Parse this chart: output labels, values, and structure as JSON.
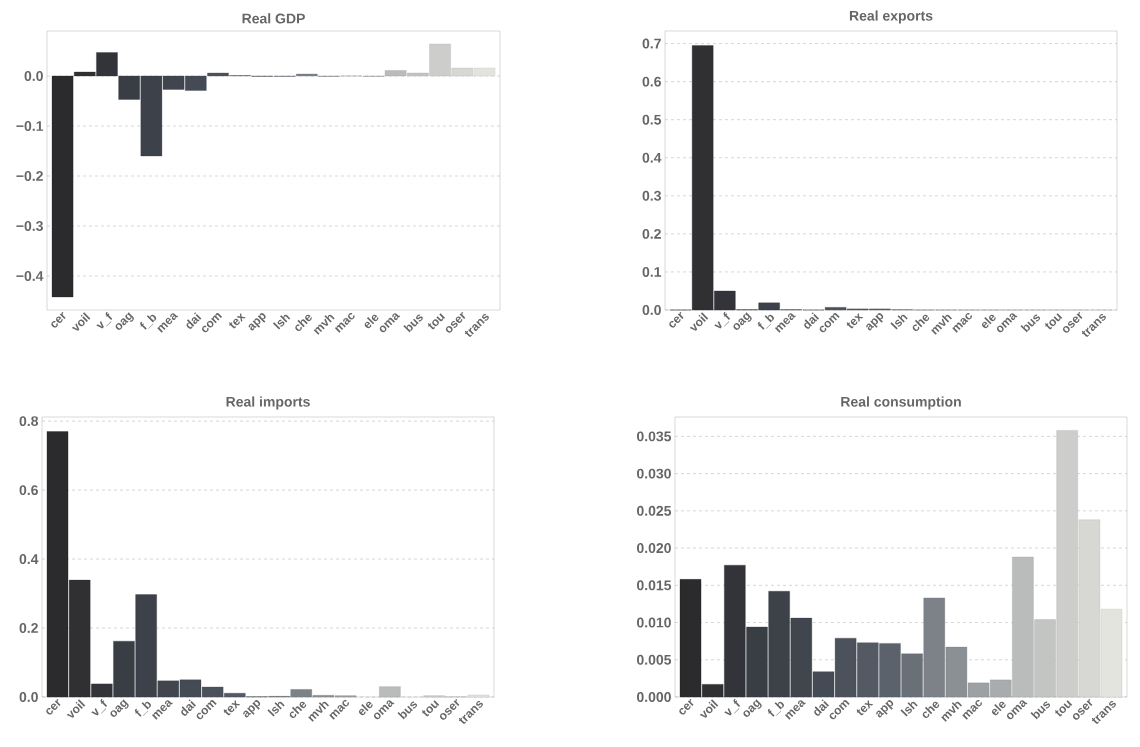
{
  "chart_data": [
    {
      "type": "bar",
      "title": "Real GDP",
      "categories": [
        "cer",
        "voil",
        "v_f",
        "oag",
        "f_b",
        "mea",
        "dai",
        "com",
        "tex",
        "app",
        "lsh",
        "che",
        "mvh",
        "mac",
        "ele",
        "oma",
        "bus",
        "tou",
        "oser",
        "trans"
      ],
      "values": [
        -0.442,
        0.008,
        0.047,
        -0.047,
        -0.16,
        -0.027,
        -0.029,
        0.006,
        0.001,
        -0.001,
        -0.001,
        0.004,
        -0.001,
        0,
        -0.001,
        0.011,
        0.006,
        0.064,
        0.016,
        0.016
      ],
      "colors": [
        "#2b2a2c",
        "#303033",
        "#323439",
        "#393d44",
        "#3c414a",
        "#40454e",
        "#454b55",
        "#4c525c",
        "#535a64",
        "#5b626b",
        "#6a7078",
        "#7d8289",
        "#8b9095",
        "#9da1a4",
        "#a9acae",
        "#b9bcba",
        "#c3c5c2",
        "#cdcecb",
        "#d7d8d3",
        "#e3e4de"
      ],
      "ylim": [
        -0.468,
        0.09
      ],
      "yticks": [
        {
          "value": -0.4,
          "label": "−0.4"
        },
        {
          "value": -0.3,
          "label": "−0.3"
        },
        {
          "value": -0.2,
          "label": "−0.2"
        },
        {
          "value": -0.1,
          "label": "−0.1"
        },
        {
          "value": 0,
          "label": "0.0"
        }
      ],
      "grid": "y"
    },
    {
      "type": "bar",
      "title": "Real exports",
      "categories": [
        "cer",
        "voil",
        "v_f",
        "oag",
        "f_b",
        "mea",
        "dai",
        "com",
        "tex",
        "app",
        "lsh",
        "che",
        "mvh",
        "mac",
        "ele",
        "oma",
        "bus",
        "tou",
        "oser",
        "trans"
      ],
      "values": [
        0,
        0.695,
        0.05,
        0.001,
        0.019,
        0.001,
        0,
        0.007,
        0.003,
        0.003,
        0.001,
        0,
        0,
        0,
        0,
        0,
        0,
        0,
        0,
        0
      ],
      "colors": [
        "#2b2a2c",
        "#303033",
        "#323439",
        "#393d44",
        "#3c414a",
        "#40454e",
        "#454b55",
        "#4c525c",
        "#535a64",
        "#5b626b",
        "#6a7078",
        "#7d8289",
        "#8b9095",
        "#9da1a4",
        "#a9acae",
        "#b9bcba",
        "#c3c5c2",
        "#cdcecb",
        "#d7d8d3",
        "#e3e4de"
      ],
      "ylim": [
        0,
        0.733
      ],
      "yticks": [
        {
          "value": 0,
          "label": "0.0"
        },
        0.1,
        0.2,
        0.3,
        0.4,
        0.5,
        0.6,
        0.7
      ],
      "grid": "y"
    },
    {
      "type": "bar",
      "title": "Real imports",
      "categories": [
        "cer",
        "voil",
        "v_f",
        "oag",
        "f_b",
        "mea",
        "dai",
        "com",
        "tex",
        "app",
        "lsh",
        "che",
        "mvh",
        "mac",
        "ele",
        "oma",
        "bus",
        "tou",
        "oser",
        "trans"
      ],
      "values": [
        0.77,
        0.339,
        0.038,
        0.162,
        0.297,
        0.047,
        0.05,
        0.029,
        0.011,
        0.001,
        0.002,
        0.022,
        0.005,
        0.004,
        null,
        0.03,
        null,
        0.004,
        0.001,
        0.006
      ],
      "colors": [
        "#2b2a2c",
        "#303033",
        "#323439",
        "#393d44",
        "#3c414a",
        "#40454e",
        "#454b55",
        "#4c525c",
        "#535a64",
        "#5b626b",
        "#6a7078",
        "#7d8289",
        "#8b9095",
        "#9da1a4",
        "#a9acae",
        "#b9bcba",
        "#c3c5c2",
        "#cdcecb",
        "#d7d8d3",
        "#e3e4de"
      ],
      "ylim": [
        0,
        0.812
      ],
      "yticks": [
        {
          "value": 0,
          "label": "0.0"
        },
        0.2,
        0.4,
        0.6,
        0.8
      ],
      "grid": "y"
    },
    {
      "type": "bar",
      "title": "Real consumption",
      "categories": [
        "cer",
        "voil",
        "v_f",
        "oag",
        "f_b",
        "mea",
        "dai",
        "com",
        "tex",
        "app",
        "lsh",
        "che",
        "mvh",
        "mac",
        "ele",
        "oma",
        "bus",
        "tou",
        "oser",
        "trans"
      ],
      "values": [
        0.0158,
        0.0017,
        0.0177,
        0.0094,
        0.0142,
        0.0106,
        0.0034,
        0.0079,
        0.0073,
        0.0072,
        0.0058,
        0.0133,
        0.0067,
        0.0019,
        0.0023,
        0.0188,
        0.0104,
        0.0358,
        0.0238,
        0.0118
      ],
      "colors": [
        "#2b2a2c",
        "#303033",
        "#323439",
        "#393d44",
        "#3c414a",
        "#40454e",
        "#454b55",
        "#4c525c",
        "#535a64",
        "#5b626b",
        "#6a7078",
        "#7d8289",
        "#8b9095",
        "#9da1a4",
        "#a9acae",
        "#b9bcba",
        "#c3c5c2",
        "#cdcecb",
        "#d7d8d3",
        "#e3e4de"
      ],
      "ylim": [
        0,
        0.0376
      ],
      "yticks": [
        {
          "value": 0,
          "label": "0.000"
        },
        {
          "value": 0.005,
          "label": "0.005"
        },
        {
          "value": 0.01,
          "label": "0.010"
        },
        {
          "value": 0.015,
          "label": "0.015"
        },
        {
          "value": 0.02,
          "label": "0.020"
        },
        {
          "value": 0.025,
          "label": "0.025"
        },
        {
          "value": 0.03,
          "label": "0.030"
        },
        {
          "value": 0.035,
          "label": "0.035"
        }
      ],
      "grid": "y"
    }
  ]
}
